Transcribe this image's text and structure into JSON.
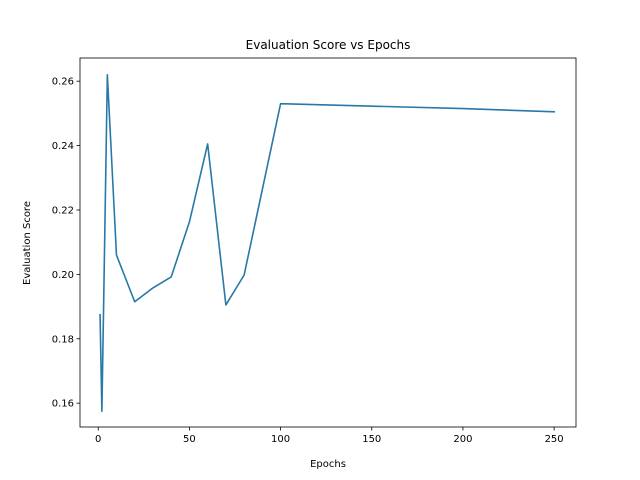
{
  "chart_data": {
    "type": "line",
    "title": "Evaluation Score vs Epochs",
    "xlabel": "Epochs",
    "ylabel": "Evaluation Score",
    "xlim": [
      -10,
      262
    ],
    "ylim": [
      0.1526,
      0.2672
    ],
    "x_ticks": [
      0,
      50,
      100,
      150,
      200,
      250
    ],
    "x_tick_labels": [
      "0",
      "50",
      "100",
      "150",
      "200",
      "250"
    ],
    "y_ticks": [
      0.16,
      0.18,
      0.2,
      0.22,
      0.24,
      0.26
    ],
    "y_tick_labels": [
      "0.16",
      "0.18",
      "0.20",
      "0.22",
      "0.24",
      "0.26"
    ],
    "grid": false,
    "line_color": "#2878a8",
    "series": [
      {
        "x": [
          1,
          2,
          3,
          5,
          10,
          20,
          30,
          40,
          50,
          60,
          70,
          80,
          100,
          200,
          250
        ],
        "values": [
          0.1875,
          0.1575,
          0.192,
          0.262,
          0.206,
          0.1915,
          0.1958,
          0.1992,
          0.2163,
          0.2405,
          0.1905,
          0.1998,
          0.253,
          0.2515,
          0.2505
        ]
      }
    ]
  }
}
